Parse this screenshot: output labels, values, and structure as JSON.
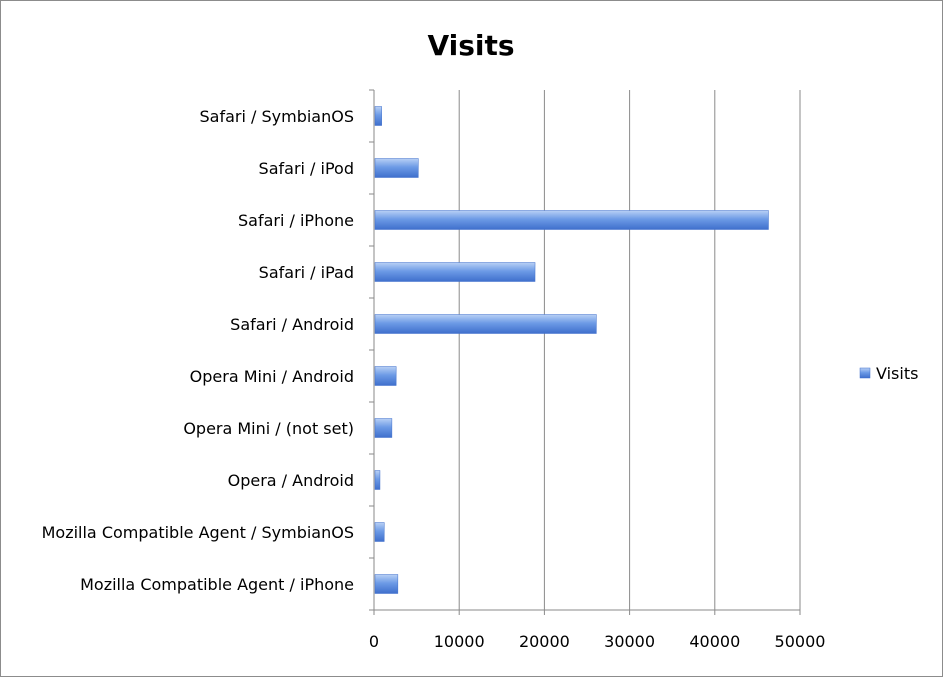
{
  "chart_data": {
    "type": "bar",
    "orientation": "horizontal",
    "title": "Visits",
    "xlabel": "",
    "ylabel": "",
    "categories": [
      "Safari / SymbianOS",
      "Safari / iPod",
      "Safari / iPhone",
      "Safari / iPad",
      "Safari / Android",
      "Opera Mini / Android",
      "Opera Mini / (not set)",
      "Opera / Android",
      "Mozilla Compatible Agent / SymbianOS",
      "Mozilla Compatible Agent / iPhone"
    ],
    "series": [
      {
        "name": "Visits",
        "color": "#4f81d9",
        "values": [
          900,
          5200,
          46300,
          18900,
          26100,
          2600,
          2100,
          700,
          1200,
          2800
        ]
      }
    ],
    "xlim": [
      0,
      50000
    ],
    "xticks": [
      0,
      10000,
      20000,
      30000,
      40000,
      50000
    ],
    "xtick_labels": [
      "0",
      "10000",
      "20000",
      "30000",
      "40000",
      "50000"
    ],
    "grid": true,
    "legend": "right"
  }
}
